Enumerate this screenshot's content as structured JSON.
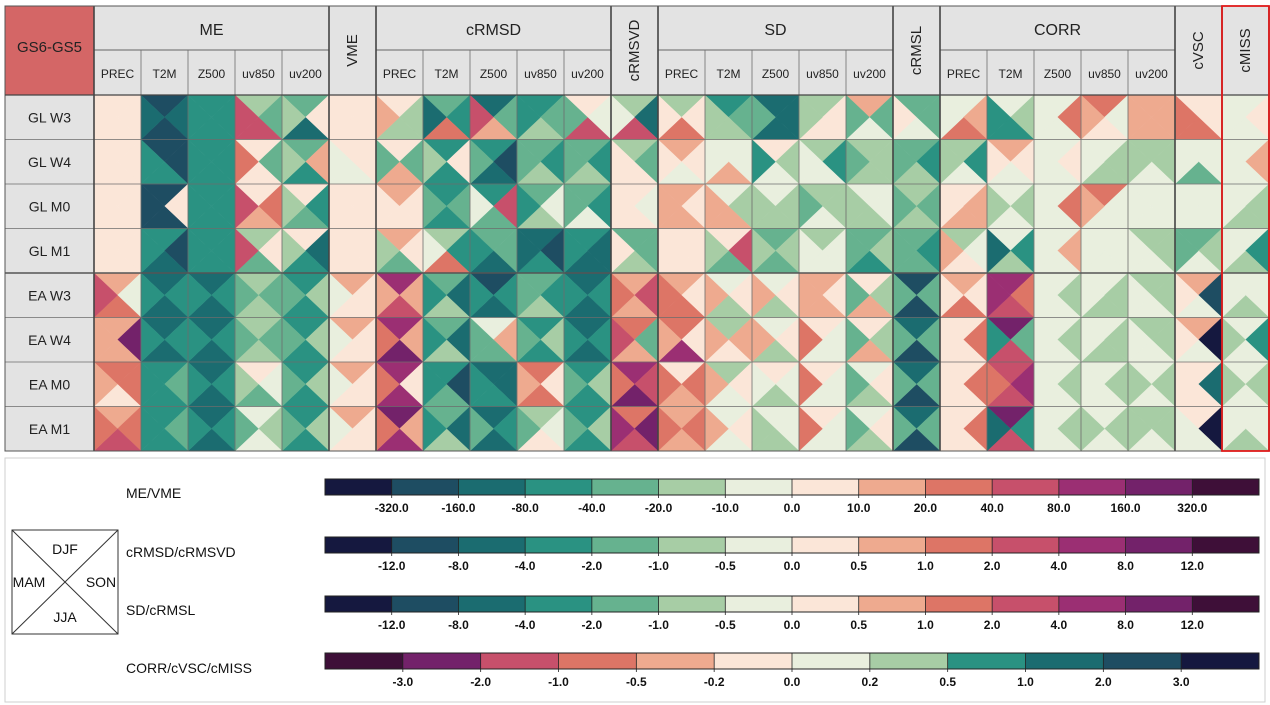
{
  "chart_data": {
    "type": "heatmap",
    "corner_label": "GS6-GS5",
    "groups": [
      {
        "label": "ME",
        "cols": [
          "PREC",
          "T2M",
          "Z500",
          "uv850",
          "uv200"
        ]
      },
      {
        "label": "VME",
        "cols": [
          ""
        ]
      },
      {
        "label": "cRMSD",
        "cols": [
          "PREC",
          "T2M",
          "Z500",
          "uv850",
          "uv200"
        ]
      },
      {
        "label": "cRMSVD",
        "cols": [
          ""
        ]
      },
      {
        "label": "SD",
        "cols": [
          "PREC",
          "T2M",
          "Z500",
          "uv850",
          "uv200"
        ]
      },
      {
        "label": "cRMSL",
        "cols": [
          ""
        ]
      },
      {
        "label": "CORR",
        "cols": [
          "PREC",
          "T2M",
          "Z500",
          "uv850",
          "uv200"
        ]
      },
      {
        "label": "cVSC",
        "cols": [
          ""
        ]
      },
      {
        "label": "cMISS",
        "cols": [
          ""
        ]
      }
    ],
    "rows": [
      "GL  W3",
      "GL  W4",
      "GL  M0",
      "GL  M1",
      "EA  W3",
      "EA  W4",
      "EA  M0",
      "EA  M1"
    ],
    "season_order": [
      "DJF",
      "SON",
      "JJA",
      "MAM"
    ],
    "cells": [
      [
        [
          7,
          7,
          7,
          7
        ],
        [
          1,
          2,
          1,
          2
        ],
        [
          3,
          3,
          3,
          3
        ],
        [
          5,
          4,
          10,
          10
        ],
        [
          4,
          7,
          2,
          5
        ],
        [
          7,
          7,
          7,
          7
        ],
        [
          7,
          5,
          5,
          8
        ],
        [
          4,
          3,
          9,
          2
        ],
        [
          2,
          4,
          8,
          10
        ],
        [
          3,
          4,
          5,
          3
        ],
        [
          7,
          6,
          10,
          4
        ],
        [
          5,
          2,
          10,
          6
        ],
        [
          5,
          7,
          9,
          7
        ],
        [
          3,
          4,
          5,
          5
        ],
        [
          2,
          2,
          2,
          4
        ],
        [
          5,
          7,
          7,
          5
        ],
        [
          8,
          4,
          6,
          4
        ],
        [
          4,
          4,
          6,
          7
        ],
        [
          6,
          8,
          9,
          6
        ],
        [
          6,
          5,
          3,
          3
        ],
        [
          6,
          9,
          6,
          6
        ],
        [
          9,
          6,
          7,
          8
        ],
        [
          8,
          8,
          8,
          8
        ],
        [
          7,
          7,
          9,
          9
        ],
        [
          6,
          7,
          6,
          6
        ],
        [
          6,
          6,
          6,
          6
        ],
        [
          6,
          5,
          6,
          6
        ]
      ],
      [
        [
          7,
          7,
          7,
          7
        ],
        [
          1,
          1,
          3,
          3
        ],
        [
          3,
          3,
          3,
          3
        ],
        [
          7,
          4,
          7,
          9
        ],
        [
          4,
          8,
          3,
          5
        ],
        [
          7,
          7,
          6,
          6
        ],
        [
          7,
          4,
          8,
          4
        ],
        [
          3,
          7,
          3,
          5
        ],
        [
          3,
          1,
          2,
          4
        ],
        [
          4,
          3,
          5,
          4
        ],
        [
          4,
          3,
          5,
          4
        ],
        [
          5,
          4,
          7,
          7
        ],
        [
          8,
          7,
          6,
          7
        ],
        [
          6,
          6,
          8,
          6
        ],
        [
          7,
          5,
          6,
          3
        ],
        [
          5,
          3,
          6,
          6
        ],
        [
          5,
          5,
          5,
          4
        ],
        [
          4,
          3,
          5,
          4
        ],
        [
          5,
          3,
          6,
          5
        ],
        [
          8,
          7,
          6,
          7
        ],
        [
          6,
          7,
          6,
          6
        ],
        [
          6,
          5,
          5,
          6
        ],
        [
          5,
          5,
          6,
          5
        ],
        [
          6,
          6,
          4,
          6
        ],
        [
          6,
          8,
          6,
          6
        ],
        [
          6,
          5,
          6,
          6
        ],
        [
          6,
          4,
          6,
          6
        ]
      ],
      [
        [
          7,
          7,
          7,
          7
        ],
        [
          1,
          7,
          1,
          1
        ],
        [
          3,
          3,
          3,
          3
        ],
        [
          7,
          9,
          8,
          10
        ],
        [
          7,
          3,
          4,
          5
        ],
        [
          7,
          7,
          7,
          7
        ],
        [
          8,
          7,
          7,
          7
        ],
        [
          3,
          4,
          3,
          4
        ],
        [
          3,
          10,
          4,
          6
        ],
        [
          4,
          6,
          5,
          3
        ],
        [
          4,
          3,
          6,
          4
        ],
        [
          7,
          6,
          7,
          7
        ],
        [
          8,
          7,
          8,
          8
        ],
        [
          6,
          5,
          8,
          8
        ],
        [
          6,
          5,
          5,
          5
        ],
        [
          5,
          5,
          6,
          4
        ],
        [
          6,
          6,
          5,
          5
        ],
        [
          5,
          4,
          5,
          4
        ],
        [
          7,
          8,
          8,
          7
        ],
        [
          6,
          5,
          6,
          5
        ],
        [
          6,
          9,
          6,
          6
        ],
        [
          9,
          6,
          6,
          8
        ],
        [
          6,
          6,
          6,
          6
        ],
        [
          6,
          6,
          6,
          6
        ],
        [
          6,
          5,
          5,
          6
        ],
        [
          6,
          5,
          6,
          5
        ],
        [
          6,
          6,
          6,
          6
        ]
      ],
      [
        [
          7,
          7,
          7,
          7
        ],
        [
          3,
          1,
          2,
          3
        ],
        [
          3,
          3,
          3,
          3
        ],
        [
          5,
          7,
          4,
          10
        ],
        [
          7,
          2,
          3,
          5
        ],
        [
          7,
          7,
          7,
          7
        ],
        [
          8,
          7,
          4,
          5
        ],
        [
          5,
          3,
          9,
          6
        ],
        [
          4,
          4,
          2,
          3
        ],
        [
          2,
          1,
          3,
          2
        ],
        [
          3,
          2,
          2,
          3
        ],
        [
          4,
          4,
          5,
          7
        ],
        [
          7,
          7,
          7,
          7
        ],
        [
          7,
          10,
          4,
          5
        ],
        [
          4,
          5,
          4,
          5
        ],
        [
          5,
          6,
          6,
          6
        ],
        [
          4,
          5,
          3,
          4
        ],
        [
          4,
          3,
          4,
          4
        ],
        [
          5,
          6,
          7,
          8
        ],
        [
          6,
          3,
          5,
          2
        ],
        [
          6,
          8,
          6,
          6
        ],
        [
          6,
          6,
          6,
          6
        ],
        [
          5,
          5,
          6,
          6
        ],
        [
          4,
          5,
          6,
          4
        ],
        [
          6,
          3,
          5,
          6
        ],
        [
          6,
          4,
          6,
          5
        ],
        [
          7,
          6,
          6,
          6
        ]
      ],
      [
        [
          8,
          6,
          9,
          10
        ],
        [
          2,
          3,
          2,
          3
        ],
        [
          2,
          3,
          2,
          3
        ],
        [
          5,
          4,
          5,
          4
        ],
        [
          3,
          5,
          3,
          4
        ],
        [
          8,
          7,
          7,
          6
        ],
        [
          11,
          8,
          10,
          8
        ],
        [
          4,
          2,
          5,
          3
        ],
        [
          1,
          3,
          2,
          3
        ],
        [
          4,
          3,
          5,
          4
        ],
        [
          2,
          3,
          2,
          3
        ],
        [
          8,
          10,
          8,
          9
        ],
        [
          8,
          7,
          9,
          9
        ],
        [
          6,
          7,
          5,
          8
        ],
        [
          6,
          7,
          5,
          8
        ],
        [
          8,
          7,
          8,
          8
        ],
        [
          7,
          5,
          8,
          4
        ],
        [
          1,
          4,
          1,
          4
        ],
        [
          8,
          7,
          9,
          7
        ],
        [
          11,
          9,
          10,
          11
        ],
        [
          6,
          5,
          6,
          6
        ],
        [
          6,
          5,
          5,
          6
        ],
        [
          5,
          5,
          6,
          6
        ],
        [
          8,
          1,
          6,
          7
        ],
        [
          6,
          6,
          5,
          6
        ],
        [
          10,
          8,
          9,
          7
        ],
        [
          10,
          8,
          11,
          8
        ]
      ],
      [
        [
          8,
          12,
          8,
          8
        ],
        [
          2,
          3,
          2,
          3
        ],
        [
          2,
          3,
          2,
          3
        ],
        [
          5,
          4,
          5,
          4
        ],
        [
          3,
          5,
          3,
          4
        ],
        [
          8,
          7,
          7,
          6
        ],
        [
          11,
          8,
          12,
          9
        ],
        [
          4,
          2,
          5,
          3
        ],
        [
          6,
          8,
          4,
          4
        ],
        [
          3,
          5,
          3,
          4
        ],
        [
          2,
          3,
          2,
          3
        ],
        [
          9,
          4,
          8,
          10
        ],
        [
          9,
          7,
          11,
          8
        ],
        [
          5,
          8,
          7,
          8
        ],
        [
          6,
          7,
          5,
          8
        ],
        [
          7,
          6,
          6,
          9
        ],
        [
          7,
          5,
          8,
          4
        ],
        [
          2,
          4,
          1,
          4
        ],
        [
          7,
          9,
          7,
          7
        ],
        [
          12,
          4,
          10,
          3
        ],
        [
          6,
          5,
          6,
          6
        ],
        [
          6,
          5,
          5,
          6
        ],
        [
          5,
          5,
          6,
          6
        ],
        [
          8,
          0,
          6,
          7
        ],
        [
          6,
          3,
          6,
          5
        ],
        [
          9,
          8,
          12,
          9
        ],
        [
          9,
          8,
          9,
          8
        ]
      ],
      [
        [
          9,
          9,
          7,
          8
        ],
        [
          3,
          4,
          3,
          3
        ],
        [
          2,
          3,
          2,
          3
        ],
        [
          7,
          6,
          4,
          5
        ],
        [
          3,
          5,
          3,
          4
        ],
        [
          8,
          7,
          7,
          6
        ],
        [
          11,
          7,
          11,
          9
        ],
        [
          3,
          1,
          4,
          3
        ],
        [
          2,
          2,
          3,
          3
        ],
        [
          9,
          7,
          9,
          8
        ],
        [
          3,
          5,
          3,
          4
        ],
        [
          11,
          10,
          12,
          9
        ],
        [
          7,
          9,
          8,
          9
        ],
        [
          5,
          7,
          6,
          8
        ],
        [
          7,
          6,
          5,
          6
        ],
        [
          7,
          6,
          6,
          9
        ],
        [
          6,
          7,
          5,
          4
        ],
        [
          2,
          4,
          1,
          4
        ],
        [
          7,
          9,
          7,
          7
        ],
        [
          10,
          11,
          10,
          9
        ],
        [
          6,
          5,
          6,
          6
        ],
        [
          6,
          5,
          6,
          6
        ],
        [
          6,
          5,
          6,
          5
        ],
        [
          7,
          2,
          7,
          7
        ],
        [
          6,
          5,
          6,
          5
        ],
        [
          9,
          8,
          11,
          9
        ],
        [
          11,
          8,
          10,
          10
        ]
      ],
      [
        [
          8,
          9,
          10,
          9
        ],
        [
          3,
          4,
          3,
          3
        ],
        [
          2,
          3,
          2,
          3
        ],
        [
          6,
          5,
          6,
          4
        ],
        [
          3,
          5,
          3,
          4
        ],
        [
          8,
          7,
          7,
          6
        ],
        [
          12,
          8,
          11,
          9
        ],
        [
          4,
          2,
          5,
          3
        ],
        [
          2,
          3,
          2,
          4
        ],
        [
          5,
          6,
          7,
          4
        ],
        [
          3,
          5,
          3,
          4
        ],
        [
          9,
          12,
          10,
          11
        ],
        [
          8,
          9,
          8,
          9
        ],
        [
          6,
          7,
          6,
          8
        ],
        [
          6,
          6,
          5,
          5
        ],
        [
          7,
          6,
          6,
          9
        ],
        [
          6,
          7,
          5,
          4
        ],
        [
          2,
          4,
          1,
          4
        ],
        [
          7,
          9,
          7,
          7
        ],
        [
          12,
          3,
          10,
          2
        ],
        [
          6,
          5,
          6,
          6
        ],
        [
          6,
          5,
          6,
          5
        ],
        [
          5,
          5,
          6,
          5
        ],
        [
          7,
          0,
          6,
          6
        ],
        [
          6,
          6,
          5,
          6
        ],
        [
          10,
          8,
          0,
          4
        ],
        [
          9,
          8,
          1,
          3
        ]
      ]
    ],
    "highlight_column": "cMISS",
    "legend": {
      "glyph": {
        "top": "DJF",
        "left": "MAM",
        "right": "SON",
        "bottom": "JJA"
      },
      "bars": [
        {
          "label": "ME/VME",
          "ticks": [
            "-320.0",
            "-160.0",
            "-80.0",
            "-40.0",
            "-20.0",
            "-10.0",
            "0.0",
            "10.0",
            "20.0",
            "40.0",
            "80.0",
            "160.0",
            "320.0"
          ]
        },
        {
          "label": "cRMSD/cRMSVD",
          "ticks": [
            "-12.0",
            "-8.0",
            "-4.0",
            "-2.0",
            "-1.0",
            "-0.5",
            "0.0",
            "0.5",
            "1.0",
            "2.0",
            "4.0",
            "8.0",
            "12.0"
          ]
        },
        {
          "label": "SD/cRMSL",
          "ticks": [
            "-12.0",
            "-8.0",
            "-4.0",
            "-2.0",
            "-1.0",
            "-0.5",
            "0.0",
            "0.5",
            "1.0",
            "2.0",
            "4.0",
            "8.0",
            "12.0"
          ]
        },
        {
          "label": "CORR/cVSC/cMISS",
          "ticks": [
            "-3.0",
            "-2.0",
            "-1.0",
            "-0.5",
            "-0.2",
            "0.0",
            "0.2",
            "0.5",
            "1.0",
            "2.0",
            "3.0"
          ],
          "reversed": true
        }
      ]
    }
  },
  "colors": {
    "palette": [
      "#15183f",
      "#1e4d62",
      "#1b6c70",
      "#2a9282",
      "#66b28f",
      "#a7cda5",
      "#e9efde",
      "#fbe6d8",
      "#eeaa8f",
      "#dd7566",
      "#c7506b",
      "#9b2f73",
      "#73226a",
      "#3e0f38"
    ],
    "header_bg": "#e3e3e3",
    "corner_bg": "#d46666",
    "highlight": "#e01b1b"
  }
}
